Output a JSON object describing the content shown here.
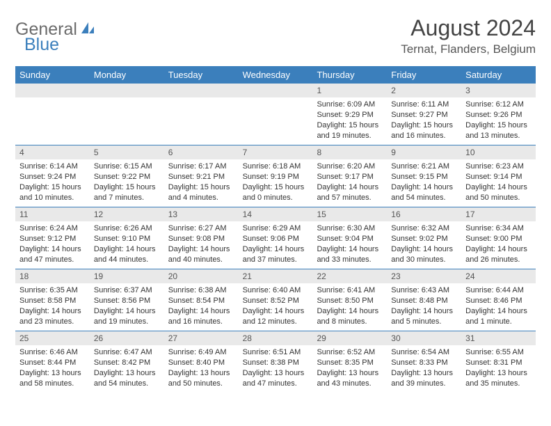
{
  "brand": {
    "part1": "General",
    "part2": "Blue"
  },
  "header": {
    "title": "August 2024",
    "location": "Ternat, Flanders, Belgium"
  },
  "colors": {
    "accent": "#3b7fbc",
    "header_bg": "#3b7fbc",
    "daynum_bg": "#e9e9e9",
    "text": "#333333",
    "title_text": "#444444",
    "logo_gray": "#6b6b6b"
  },
  "day_names": [
    "Sunday",
    "Monday",
    "Tuesday",
    "Wednesday",
    "Thursday",
    "Friday",
    "Saturday"
  ],
  "weeks": [
    [
      null,
      null,
      null,
      null,
      {
        "d": "1",
        "sr": "6:09 AM",
        "ss": "9:29 PM",
        "dl": "15 hours and 19 minutes."
      },
      {
        "d": "2",
        "sr": "6:11 AM",
        "ss": "9:27 PM",
        "dl": "15 hours and 16 minutes."
      },
      {
        "d": "3",
        "sr": "6:12 AM",
        "ss": "9:26 PM",
        "dl": "15 hours and 13 minutes."
      }
    ],
    [
      {
        "d": "4",
        "sr": "6:14 AM",
        "ss": "9:24 PM",
        "dl": "15 hours and 10 minutes."
      },
      {
        "d": "5",
        "sr": "6:15 AM",
        "ss": "9:22 PM",
        "dl": "15 hours and 7 minutes."
      },
      {
        "d": "6",
        "sr": "6:17 AM",
        "ss": "9:21 PM",
        "dl": "15 hours and 4 minutes."
      },
      {
        "d": "7",
        "sr": "6:18 AM",
        "ss": "9:19 PM",
        "dl": "15 hours and 0 minutes."
      },
      {
        "d": "8",
        "sr": "6:20 AM",
        "ss": "9:17 PM",
        "dl": "14 hours and 57 minutes."
      },
      {
        "d": "9",
        "sr": "6:21 AM",
        "ss": "9:15 PM",
        "dl": "14 hours and 54 minutes."
      },
      {
        "d": "10",
        "sr": "6:23 AM",
        "ss": "9:14 PM",
        "dl": "14 hours and 50 minutes."
      }
    ],
    [
      {
        "d": "11",
        "sr": "6:24 AM",
        "ss": "9:12 PM",
        "dl": "14 hours and 47 minutes."
      },
      {
        "d": "12",
        "sr": "6:26 AM",
        "ss": "9:10 PM",
        "dl": "14 hours and 44 minutes."
      },
      {
        "d": "13",
        "sr": "6:27 AM",
        "ss": "9:08 PM",
        "dl": "14 hours and 40 minutes."
      },
      {
        "d": "14",
        "sr": "6:29 AM",
        "ss": "9:06 PM",
        "dl": "14 hours and 37 minutes."
      },
      {
        "d": "15",
        "sr": "6:30 AM",
        "ss": "9:04 PM",
        "dl": "14 hours and 33 minutes."
      },
      {
        "d": "16",
        "sr": "6:32 AM",
        "ss": "9:02 PM",
        "dl": "14 hours and 30 minutes."
      },
      {
        "d": "17",
        "sr": "6:34 AM",
        "ss": "9:00 PM",
        "dl": "14 hours and 26 minutes."
      }
    ],
    [
      {
        "d": "18",
        "sr": "6:35 AM",
        "ss": "8:58 PM",
        "dl": "14 hours and 23 minutes."
      },
      {
        "d": "19",
        "sr": "6:37 AM",
        "ss": "8:56 PM",
        "dl": "14 hours and 19 minutes."
      },
      {
        "d": "20",
        "sr": "6:38 AM",
        "ss": "8:54 PM",
        "dl": "14 hours and 16 minutes."
      },
      {
        "d": "21",
        "sr": "6:40 AM",
        "ss": "8:52 PM",
        "dl": "14 hours and 12 minutes."
      },
      {
        "d": "22",
        "sr": "6:41 AM",
        "ss": "8:50 PM",
        "dl": "14 hours and 8 minutes."
      },
      {
        "d": "23",
        "sr": "6:43 AM",
        "ss": "8:48 PM",
        "dl": "14 hours and 5 minutes."
      },
      {
        "d": "24",
        "sr": "6:44 AM",
        "ss": "8:46 PM",
        "dl": "14 hours and 1 minute."
      }
    ],
    [
      {
        "d": "25",
        "sr": "6:46 AM",
        "ss": "8:44 PM",
        "dl": "13 hours and 58 minutes."
      },
      {
        "d": "26",
        "sr": "6:47 AM",
        "ss": "8:42 PM",
        "dl": "13 hours and 54 minutes."
      },
      {
        "d": "27",
        "sr": "6:49 AM",
        "ss": "8:40 PM",
        "dl": "13 hours and 50 minutes."
      },
      {
        "d": "28",
        "sr": "6:51 AM",
        "ss": "8:38 PM",
        "dl": "13 hours and 47 minutes."
      },
      {
        "d": "29",
        "sr": "6:52 AM",
        "ss": "8:35 PM",
        "dl": "13 hours and 43 minutes."
      },
      {
        "d": "30",
        "sr": "6:54 AM",
        "ss": "8:33 PM",
        "dl": "13 hours and 39 minutes."
      },
      {
        "d": "31",
        "sr": "6:55 AM",
        "ss": "8:31 PM",
        "dl": "13 hours and 35 minutes."
      }
    ]
  ],
  "labels": {
    "sunrise": "Sunrise: ",
    "sunset": "Sunset: ",
    "daylight": "Daylight: "
  }
}
